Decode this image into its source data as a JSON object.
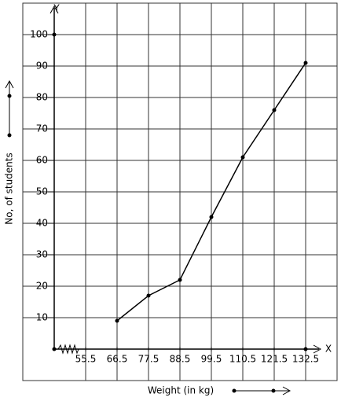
{
  "chart_data": {
    "type": "line",
    "xlabel": "Weight (in kg)",
    "ylabel": "No, of students",
    "x_axis_name": "X",
    "y_axis_name": "Y",
    "x": [
      66.5,
      77.5,
      88.5,
      99.5,
      110.5,
      121.5,
      132.5
    ],
    "values": [
      9,
      17,
      22,
      42,
      61,
      76,
      91
    ],
    "color": "#000000",
    "xlim": [
      44.5,
      143.5
    ],
    "ylim": [
      0,
      110
    ],
    "xticks": [
      55.5,
      66.5,
      77.5,
      88.5,
      99.5,
      110.5,
      121.5,
      132.5
    ],
    "yticks": [
      10,
      20,
      30,
      40,
      50,
      60,
      70,
      80,
      90,
      100
    ],
    "grid": true
  }
}
